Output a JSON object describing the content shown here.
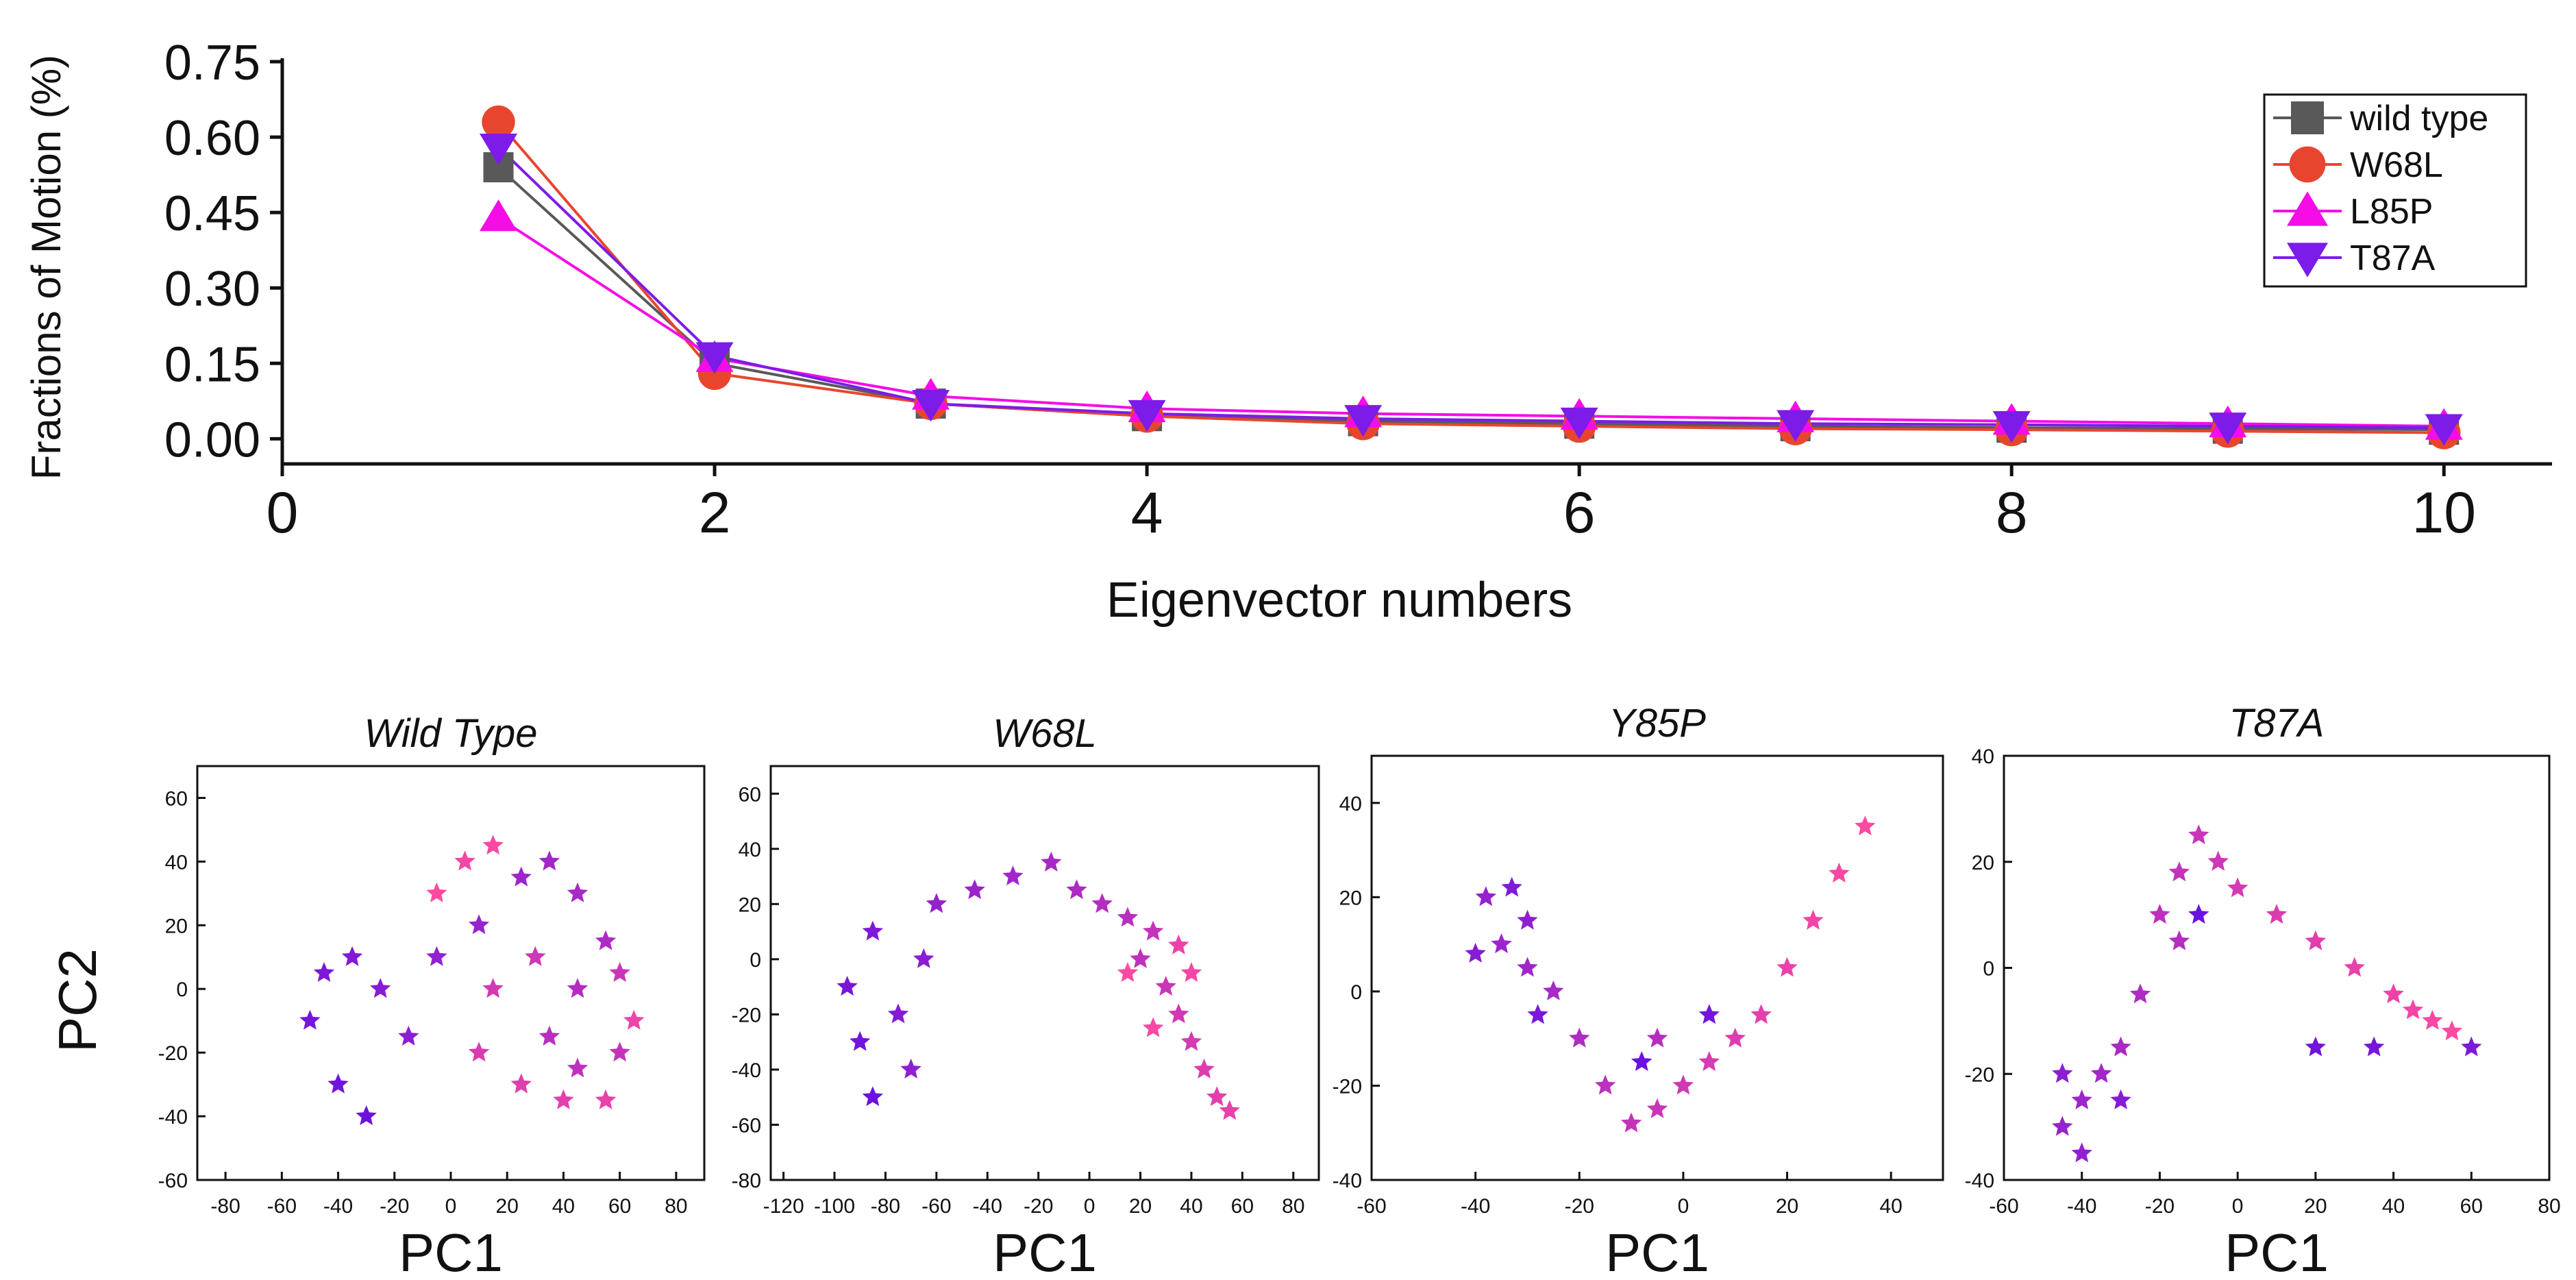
{
  "colors": {
    "wild_type": "#595959",
    "w68l": "#e8452f",
    "l85p": "#f50ce6",
    "t87a": "#7d1be8",
    "scatter_start": "#6c12e0",
    "scatter_end": "#ff4aa0"
  },
  "chart_data": [
    {
      "type": "line",
      "ylabel": "Fractions of Motion (%)",
      "xlabel": "Eigenvector numbers",
      "xlim": [
        0,
        10.5
      ],
      "ylim": [
        -0.05,
        0.75
      ],
      "x_ticks": [
        0,
        2,
        4,
        6,
        8,
        10
      ],
      "y_ticks": [
        0.0,
        0.15,
        0.3,
        0.45,
        0.6,
        0.75
      ],
      "x_tick_labels": [
        "0",
        "2",
        "4",
        "6",
        "8",
        "10"
      ],
      "y_tick_labels": [
        "0.00",
        "0.15",
        "0.30",
        "0.45",
        "0.60",
        "0.75"
      ],
      "legend_position": "top-right",
      "x": [
        1,
        2,
        3,
        4,
        5,
        6,
        7,
        8,
        9,
        10
      ],
      "series": [
        {
          "name": "wild type",
          "marker": "square",
          "color": "#595959",
          "values": [
            0.54,
            0.15,
            0.07,
            0.045,
            0.035,
            0.03,
            0.025,
            0.022,
            0.02,
            0.018
          ]
        },
        {
          "name": "W68L",
          "marker": "circle",
          "color": "#e8452f",
          "values": [
            0.63,
            0.13,
            0.07,
            0.045,
            0.03,
            0.025,
            0.02,
            0.018,
            0.015,
            0.012
          ]
        },
        {
          "name": "L85P",
          "marker": "triangle-up",
          "color": "#f50ce6",
          "values": [
            0.44,
            0.16,
            0.085,
            0.06,
            0.05,
            0.045,
            0.04,
            0.035,
            0.03,
            0.025
          ]
        },
        {
          "name": "T87A",
          "marker": "triangle-down",
          "color": "#7d1be8",
          "values": [
            0.58,
            0.165,
            0.07,
            0.05,
            0.04,
            0.035,
            0.03,
            0.028,
            0.025,
            0.022
          ]
        }
      ]
    },
    {
      "type": "scatter",
      "title": "Wild Type",
      "xlabel": "PC1",
      "ylabel": "PC2",
      "xlim": [
        -90,
        90
      ],
      "ylim": [
        -60,
        70
      ],
      "x_ticks": [
        -80,
        -60,
        -40,
        -20,
        0,
        20,
        40,
        60,
        80
      ],
      "y_ticks": [
        -60,
        -40,
        -20,
        0,
        20,
        40,
        60
      ],
      "x_tick_labels": [
        "-80",
        "-60",
        "-40",
        "-20",
        "0",
        "20",
        "40",
        "60",
        "80"
      ],
      "y_tick_labels": [
        "-60",
        "-40",
        "-20",
        "0",
        "20",
        "40",
        "60"
      ],
      "series": [
        {
          "name": "trajectory",
          "marker": "star",
          "points": [
            [
              -30,
              -40
            ],
            [
              -40,
              -30
            ],
            [
              -50,
              -10
            ],
            [
              -45,
              5
            ],
            [
              -35,
              10
            ],
            [
              -25,
              0
            ],
            [
              -15,
              -15
            ],
            [
              -5,
              10
            ],
            [
              10,
              20
            ],
            [
              25,
              35
            ],
            [
              35,
              40
            ],
            [
              45,
              30
            ],
            [
              55,
              15
            ],
            [
              45,
              0
            ],
            [
              35,
              -15
            ],
            [
              45,
              -25
            ],
            [
              60,
              -20
            ],
            [
              60,
              5
            ],
            [
              30,
              10
            ],
            [
              15,
              0
            ],
            [
              10,
              -20
            ],
            [
              25,
              -30
            ],
            [
              40,
              -35
            ],
            [
              55,
              -35
            ],
            [
              65,
              -10
            ],
            [
              5,
              40
            ],
            [
              15,
              45
            ],
            [
              -5,
              30
            ]
          ]
        }
      ]
    },
    {
      "type": "scatter",
      "title": "W68L",
      "xlabel": "PC1",
      "ylabel": "",
      "xlim": [
        -125,
        90
      ],
      "ylim": [
        -80,
        70
      ],
      "x_ticks": [
        -120,
        -100,
        -80,
        -60,
        -40,
        -20,
        0,
        20,
        40,
        60,
        80
      ],
      "y_ticks": [
        -80,
        -60,
        -40,
        -20,
        0,
        20,
        40,
        60
      ],
      "x_tick_labels": [
        "-120",
        "-100",
        "-80",
        "-60",
        "-40",
        "-20",
        "0",
        "20",
        "40",
        "60",
        "80"
      ],
      "y_tick_labels": [
        "-80",
        "-60",
        "-40",
        "-20",
        "0",
        "20",
        "40",
        "60"
      ],
      "series": [
        {
          "name": "trajectory",
          "marker": "star",
          "points": [
            [
              -85,
              -50
            ],
            [
              -90,
              -30
            ],
            [
              -95,
              -10
            ],
            [
              -85,
              10
            ],
            [
              -75,
              -20
            ],
            [
              -65,
              0
            ],
            [
              -70,
              -40
            ],
            [
              -60,
              20
            ],
            [
              -45,
              25
            ],
            [
              -30,
              30
            ],
            [
              -15,
              35
            ],
            [
              -5,
              25
            ],
            [
              5,
              20
            ],
            [
              15,
              15
            ],
            [
              20,
              0
            ],
            [
              25,
              10
            ],
            [
              30,
              -10
            ],
            [
              35,
              -20
            ],
            [
              40,
              -30
            ],
            [
              45,
              -40
            ],
            [
              50,
              -50
            ],
            [
              55,
              -55
            ],
            [
              35,
              5
            ],
            [
              40,
              -5
            ],
            [
              25,
              -25
            ],
            [
              15,
              -5
            ]
          ]
        }
      ]
    },
    {
      "type": "scatter",
      "title": "Y85P",
      "xlabel": "PC1",
      "ylabel": "",
      "xlim": [
        -60,
        50
      ],
      "ylim": [
        -40,
        50
      ],
      "x_ticks": [
        -60,
        -40,
        -20,
        0,
        20,
        40
      ],
      "y_ticks": [
        -40,
        -20,
        0,
        20,
        40
      ],
      "x_tick_labels": [
        "-60",
        "-40",
        "-20",
        "0",
        "20",
        "40"
      ],
      "y_tick_labels": [
        "-40",
        "-20",
        "0",
        "20",
        "40"
      ],
      "series": [
        {
          "name": "trajectory",
          "marker": "star",
          "points": [
            [
              35,
              35
            ],
            [
              30,
              25
            ],
            [
              25,
              15
            ],
            [
              20,
              5
            ],
            [
              15,
              -5
            ],
            [
              10,
              -10
            ],
            [
              5,
              -15
            ],
            [
              0,
              -20
            ],
            [
              -5,
              -25
            ],
            [
              -10,
              -28
            ],
            [
              -15,
              -20
            ],
            [
              -5,
              -10
            ],
            [
              -20,
              -10
            ],
            [
              -25,
              0
            ],
            [
              -30,
              5
            ],
            [
              -35,
              10
            ],
            [
              -38,
              20
            ],
            [
              -30,
              15
            ],
            [
              -40,
              8
            ],
            [
              -33,
              22
            ],
            [
              -28,
              -5
            ],
            [
              5,
              -5
            ],
            [
              -8,
              -15
            ]
          ]
        }
      ]
    },
    {
      "type": "scatter",
      "title": "T87A",
      "xlabel": "PC1",
      "ylabel": "",
      "xlim": [
        -60,
        80
      ],
      "ylim": [
        -40,
        40
      ],
      "x_ticks": [
        -60,
        -40,
        -20,
        0,
        20,
        40,
        60,
        80
      ],
      "y_ticks": [
        -40,
        -20,
        0,
        20,
        40
      ],
      "x_tick_labels": [
        "-60",
        "-40",
        "-20",
        "0",
        "20",
        "40",
        "60",
        "80"
      ],
      "y_tick_labels": [
        "-40",
        "-20",
        "0",
        "20",
        "40"
      ],
      "series": [
        {
          "name": "trajectory",
          "marker": "star",
          "points": [
            [
              55,
              -12
            ],
            [
              50,
              -10
            ],
            [
              45,
              -8
            ],
            [
              40,
              -5
            ],
            [
              30,
              0
            ],
            [
              20,
              5
            ],
            [
              10,
              10
            ],
            [
              0,
              15
            ],
            [
              -5,
              20
            ],
            [
              -10,
              25
            ],
            [
              -15,
              18
            ],
            [
              -20,
              10
            ],
            [
              -15,
              5
            ],
            [
              -25,
              -5
            ],
            [
              -30,
              -15
            ],
            [
              -35,
              -20
            ],
            [
              -40,
              -25
            ],
            [
              -45,
              -30
            ],
            [
              -40,
              -35
            ],
            [
              -45,
              -20
            ],
            [
              -30,
              -25
            ],
            [
              60,
              -15
            ],
            [
              35,
              -15
            ],
            [
              20,
              -15
            ],
            [
              -10,
              10
            ]
          ]
        }
      ]
    }
  ]
}
